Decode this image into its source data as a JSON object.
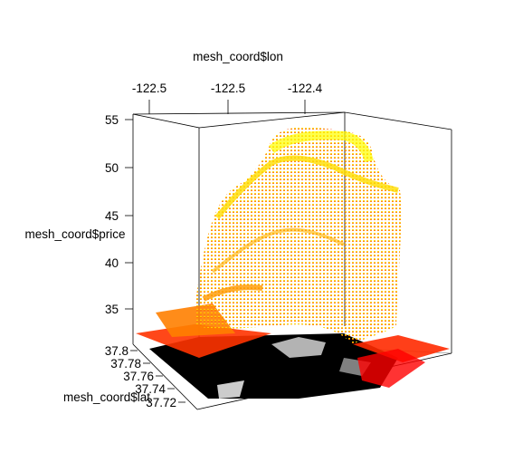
{
  "chart_data": {
    "type": "surface3d",
    "title": "",
    "axes": {
      "x": {
        "label": "mesh_coord$lon",
        "ticks": [
          "-122.5",
          "-122.5",
          "-122.4"
        ]
      },
      "y": {
        "label": "mesh_coord$lat",
        "ticks": [
          "37.8",
          "37.78",
          "37.76",
          "37.74",
          "37.72"
        ]
      },
      "z": {
        "label": "mesh_coord$price",
        "ticks": [
          "55",
          "50",
          "45",
          "40",
          "35"
        ],
        "range": [
          32,
          56
        ]
      }
    },
    "colormap": [
      "#ff0000",
      "#ff7f00",
      "#ffd700",
      "#ffff00"
    ],
    "base_layer": "map-overlay",
    "surface_peaks": [
      {
        "lon_index": 0.55,
        "lat_index": 0.5,
        "price": 55
      },
      {
        "lon_index": 0.35,
        "lat_index": 0.4,
        "price": 50
      },
      {
        "lon_index": 0.7,
        "lat_index": 0.45,
        "price": 48
      }
    ]
  }
}
